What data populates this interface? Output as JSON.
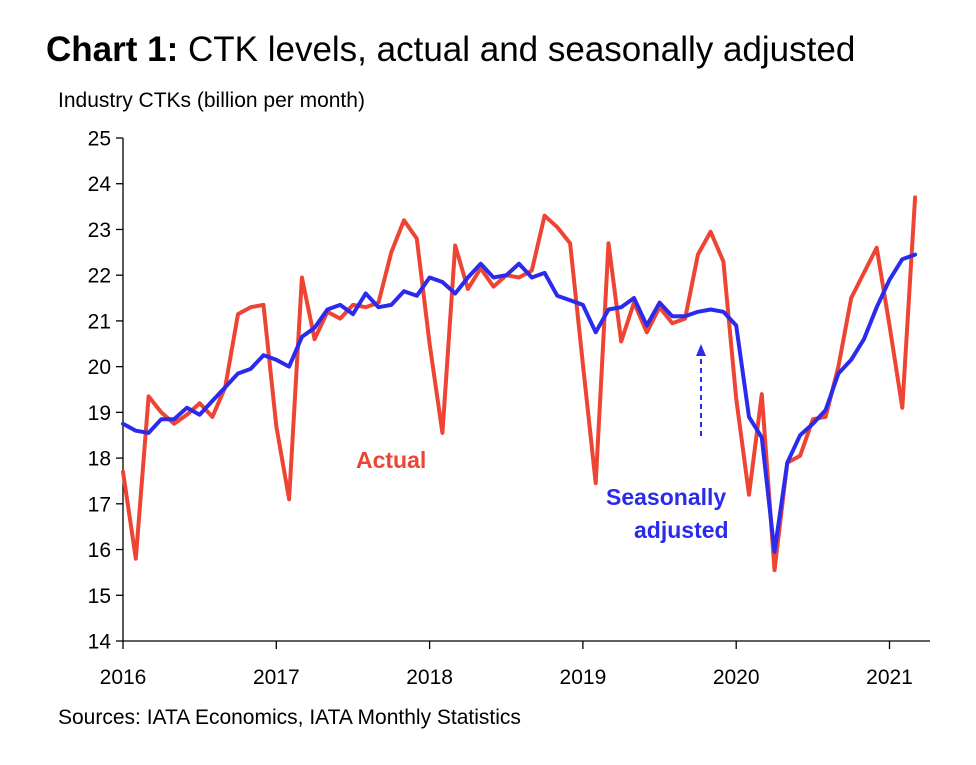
{
  "title_bold": "Chart 1:",
  "title_rest": " CTK levels, actual and seasonally adjusted",
  "y_axis_label": "Industry CTKs (billion per month)",
  "source": "Sources: IATA Economics, IATA Monthly Statistics",
  "colors": {
    "actual": "#ee4433",
    "seasonally_adjusted": "#2b2bee",
    "axis": "#000000"
  },
  "chart_data": {
    "type": "line",
    "title": "Chart 1: CTK levels, actual and seasonally adjusted",
    "ylabel": "Industry CTKs (billion per month)",
    "xlabel": "",
    "ylim": [
      14,
      25
    ],
    "yticks": [
      14,
      15,
      16,
      17,
      18,
      19,
      20,
      21,
      22,
      23,
      24,
      25
    ],
    "xlim": [
      2016.0,
      2021.26
    ],
    "xticks": [
      "2016",
      "2017",
      "2018",
      "2019",
      "2020",
      "2021"
    ],
    "grid": false,
    "legend": "inline labels",
    "start": "2016-01",
    "annotation": "dashed arrow pointing up to the seasonally adjusted line near late 2019",
    "series": [
      {
        "name": "Actual",
        "color": "#ee4433",
        "values": [
          17.7,
          15.8,
          19.35,
          19.0,
          18.75,
          18.95,
          19.2,
          18.9,
          19.55,
          21.15,
          21.3,
          21.35,
          18.7,
          17.1,
          21.95,
          20.6,
          21.2,
          21.05,
          21.35,
          21.3,
          21.4,
          22.5,
          23.2,
          22.8,
          20.5,
          18.55,
          22.65,
          21.7,
          22.15,
          21.75,
          22.0,
          21.95,
          22.1,
          23.3,
          23.05,
          22.7,
          20.05,
          17.45,
          22.7,
          20.55,
          21.4,
          20.75,
          21.3,
          20.95,
          21.05,
          22.45,
          22.95,
          22.3,
          19.3,
          17.2,
          19.4,
          15.55,
          17.9,
          18.05,
          18.85,
          18.9,
          20.0,
          21.5,
          22.05,
          22.6,
          20.9,
          19.1,
          23.7
        ]
      },
      {
        "name": "Seasonally adjusted",
        "color": "#2b2bee",
        "values": [
          18.75,
          18.6,
          18.55,
          18.85,
          18.85,
          19.1,
          18.95,
          19.25,
          19.55,
          19.85,
          19.95,
          20.25,
          20.15,
          20.0,
          20.65,
          20.85,
          21.25,
          21.35,
          21.15,
          21.6,
          21.3,
          21.35,
          21.65,
          21.55,
          21.95,
          21.85,
          21.6,
          21.95,
          22.25,
          21.95,
          22.0,
          22.25,
          21.95,
          22.05,
          21.55,
          21.45,
          21.35,
          20.75,
          21.25,
          21.3,
          21.5,
          20.9,
          21.4,
          21.1,
          21.1,
          21.2,
          21.25,
          21.2,
          20.9,
          18.9,
          18.45,
          15.95,
          17.9,
          18.5,
          18.75,
          19.05,
          19.85,
          20.15,
          20.6,
          21.3,
          21.9,
          22.35,
          22.45
        ]
      }
    ],
    "series_labels": [
      "Actual",
      "Seasonally\nadjusted"
    ]
  }
}
